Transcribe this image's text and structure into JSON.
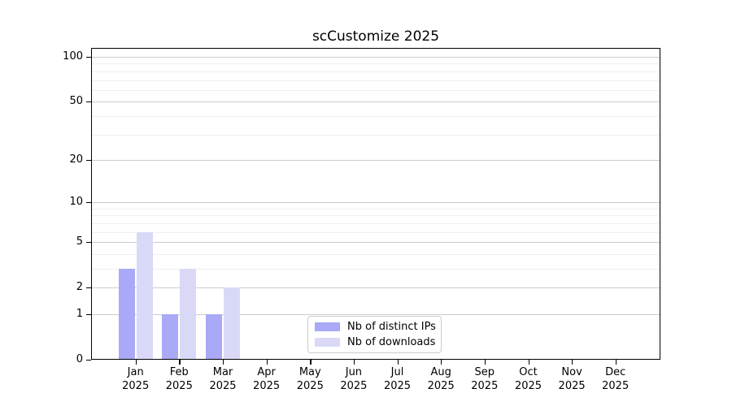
{
  "chart_data": {
    "type": "bar",
    "title": "scCustomize 2025",
    "categories": [
      "Jan 2025",
      "Feb 2025",
      "Mar 2025",
      "Apr 2025",
      "May 2025",
      "Jun 2025",
      "Jul 2025",
      "Aug 2025",
      "Sep 2025",
      "Oct 2025",
      "Nov 2025",
      "Dec 2025"
    ],
    "series": [
      {
        "name": "Nb of distinct IPs",
        "color": "#a9a9f7",
        "values": [
          3,
          1,
          1,
          0,
          0,
          0,
          0,
          0,
          0,
          0,
          0,
          0
        ]
      },
      {
        "name": "Nb of downloads",
        "color": "#d9d9f7",
        "values": [
          6,
          3,
          2,
          0,
          0,
          0,
          0,
          0,
          0,
          0,
          0,
          0
        ]
      }
    ],
    "yscale": "log1p",
    "ylim": [
      0,
      115
    ],
    "yticks": [
      0,
      1,
      2,
      5,
      10,
      20,
      50,
      100
    ],
    "minor_gridlines": [
      3,
      4,
      6,
      7,
      8,
      9,
      30,
      40,
      60,
      70,
      80,
      90
    ],
    "grid": true,
    "legend_position": "lower center",
    "colors": {
      "spine": "#000000",
      "major_grid": "#cccccc",
      "minor_grid": "#f0f0f0",
      "background": "#ffffff"
    }
  }
}
